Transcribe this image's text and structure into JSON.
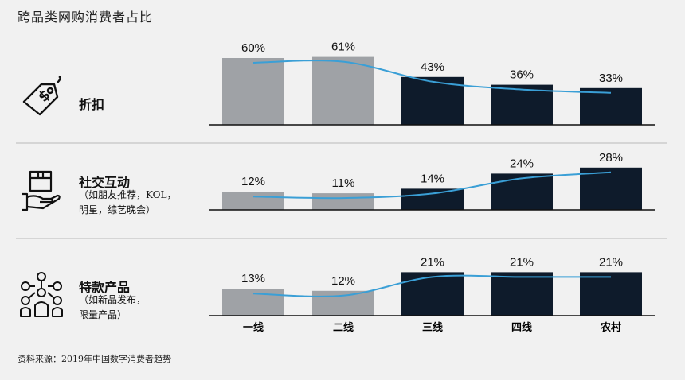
{
  "title": "跨品类网购消费者占比",
  "source": "资料来源：2019年中国数字消费者趋势",
  "colors": {
    "gray": "#9fa2a6",
    "navy": "#0e1b2b",
    "line": "#3a9fd6",
    "divider": "#b9b9b9"
  },
  "panels": [
    {
      "label": "折扣",
      "sublines": [],
      "icon": "discount-tag-icon"
    },
    {
      "label": "社交互动",
      "sublines": [
        "（如朋友推荐，KOL，",
        "明星，综艺晚会）"
      ],
      "icon": "hand-box-icon"
    },
    {
      "label": "特款产品",
      "sublines": [
        "（如新品发布，",
        "限量产品）"
      ],
      "icon": "network-people-icon"
    }
  ],
  "chart_data": [
    {
      "type": "bar",
      "categories": [
        "一线",
        "二线",
        "三线",
        "四线",
        "农村"
      ],
      "values": [
        60,
        61,
        43,
        36,
        33
      ],
      "value_labels": [
        "60%",
        "61%",
        "43%",
        "36%",
        "33%"
      ],
      "bar_colors": [
        "gray",
        "gray",
        "navy",
        "navy",
        "navy"
      ],
      "trend_line": true
    },
    {
      "type": "bar",
      "categories": [
        "一线",
        "二线",
        "三线",
        "四线",
        "农村"
      ],
      "values": [
        12,
        11,
        14,
        24,
        28
      ],
      "value_labels": [
        "12%",
        "11%",
        "14%",
        "24%",
        "28%"
      ],
      "bar_colors": [
        "gray",
        "gray",
        "navy",
        "navy",
        "navy"
      ],
      "trend_line": true
    },
    {
      "type": "bar",
      "categories": [
        "一线",
        "二线",
        "三线",
        "四线",
        "农村"
      ],
      "values": [
        13,
        12,
        21,
        21,
        21
      ],
      "value_labels": [
        "13%",
        "12%",
        "21%",
        "21%",
        "21%"
      ],
      "bar_colors": [
        "gray",
        "gray",
        "navy",
        "navy",
        "navy"
      ],
      "trend_line": true
    }
  ]
}
